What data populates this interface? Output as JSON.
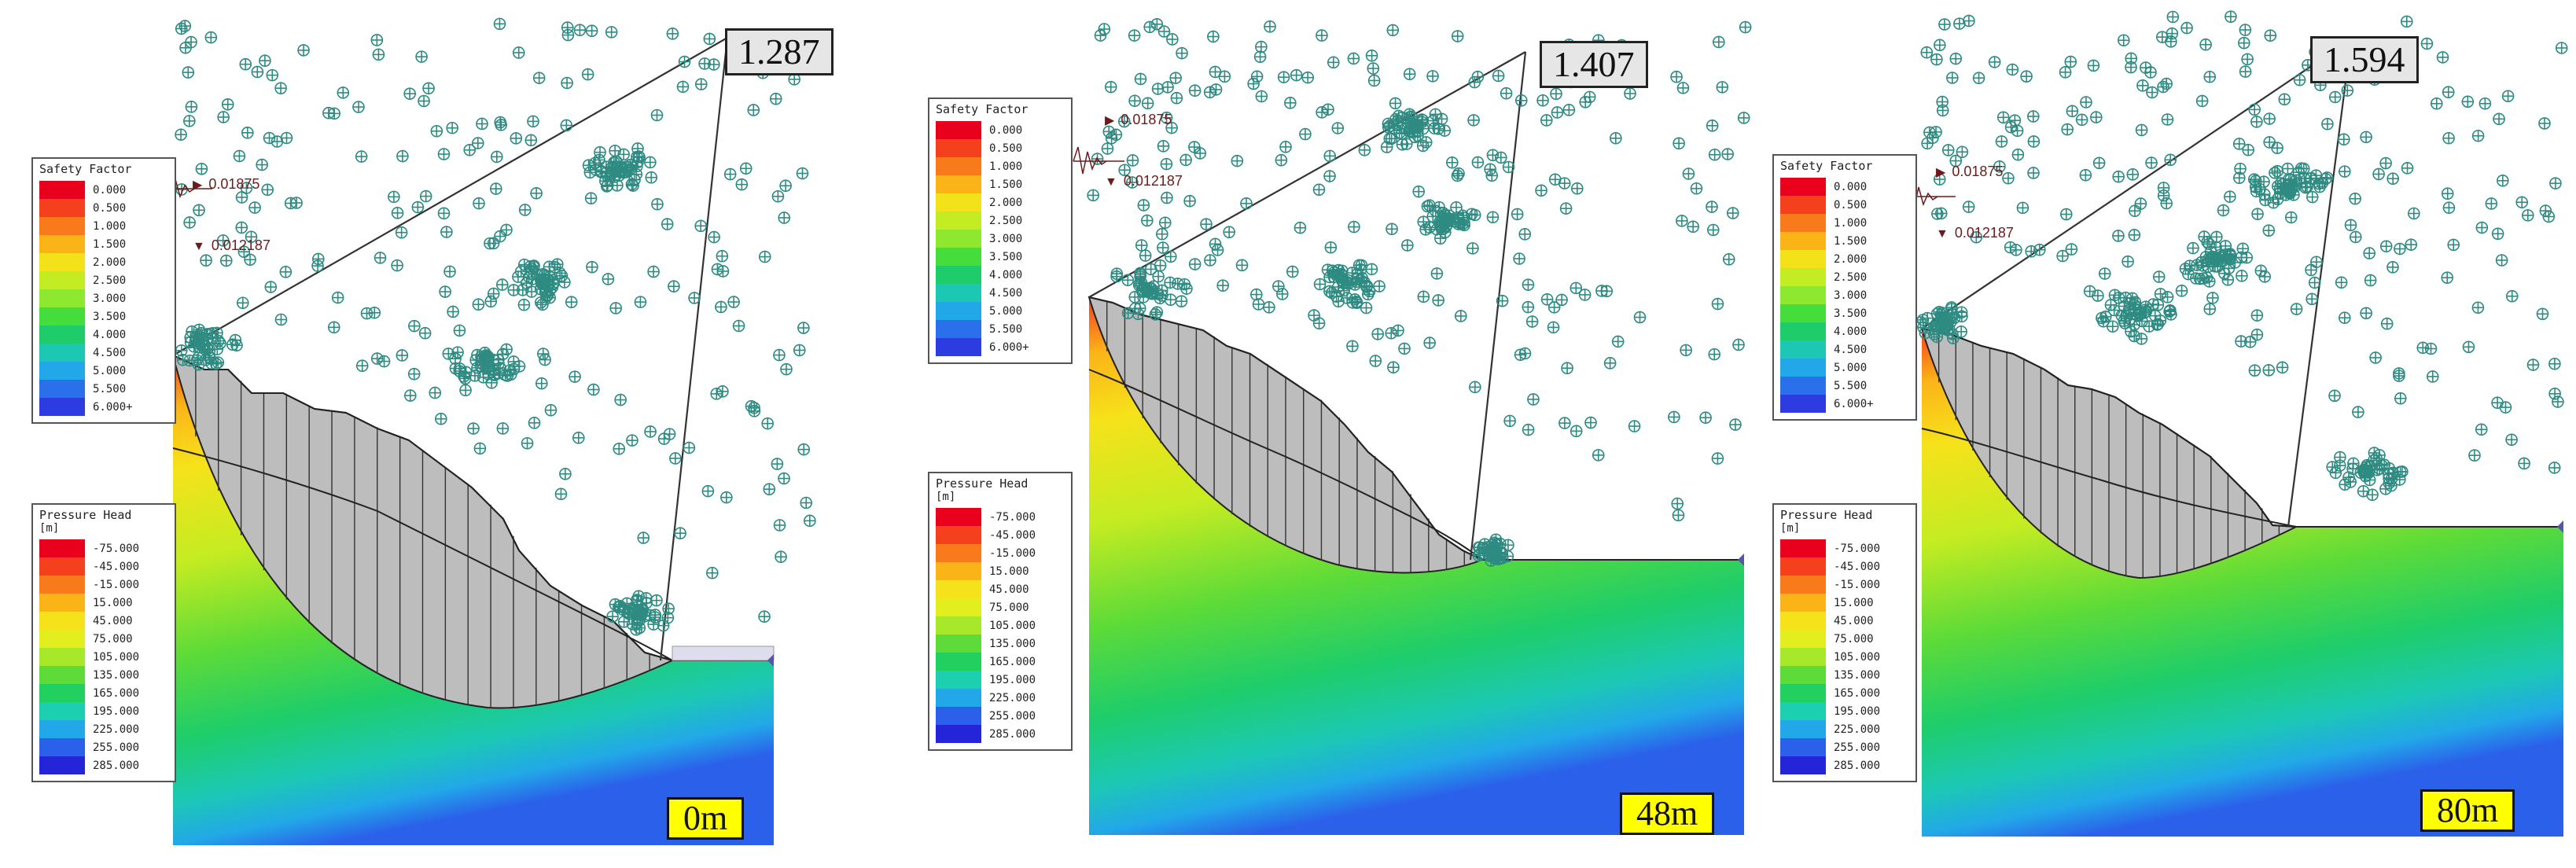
{
  "panels": [
    {
      "id": "p0",
      "factor_of_safety": "1.287",
      "depth_label": "0m"
    },
    {
      "id": "p1",
      "factor_of_safety": "1.407",
      "depth_label": "48m"
    },
    {
      "id": "p2",
      "factor_of_safety": "1.594",
      "depth_label": "80m"
    }
  ],
  "seismic": {
    "horizontal": "0.01875",
    "vertical": "0.012187"
  },
  "safety_legend": {
    "title": "Safety Factor",
    "labels": [
      "0.000",
      "0.500",
      "1.000",
      "1.500",
      "2.000",
      "2.500",
      "3.000",
      "3.500",
      "4.000",
      "4.500",
      "5.000",
      "5.500",
      "6.000+"
    ],
    "colors": [
      "#e8001c",
      "#f5401e",
      "#f87a1a",
      "#fbb418",
      "#f3e21a",
      "#c4ec22",
      "#8ee830",
      "#44dd3c",
      "#1ecd6a",
      "#1cc8b4",
      "#22a8e8",
      "#2a70ea",
      "#2c3ce0"
    ]
  },
  "pressure_legend": {
    "title": "Pressure Head",
    "unit": "[m]",
    "labels": [
      "-75.000",
      "-45.000",
      "-15.000",
      "15.000",
      "45.000",
      "75.000",
      "105.000",
      "135.000",
      "165.000",
      "195.000",
      "225.000",
      "255.000",
      "285.000"
    ],
    "colors": [
      "#e8001c",
      "#f5401e",
      "#f87a1a",
      "#fbb418",
      "#f6e21a",
      "#e2ee1e",
      "#a8e82a",
      "#5edb38",
      "#22d060",
      "#1ccfb0",
      "#22a8e8",
      "#2a60ea",
      "#2424d8"
    ]
  },
  "colors": {
    "slip_mass": "#bdbdbd",
    "grid_point": "#2e8b82",
    "line": "#222222",
    "fos_box_bg": "#e6e6e6",
    "depth_box_bg": "#ffff00",
    "seismic": "#6b1b1b"
  }
}
